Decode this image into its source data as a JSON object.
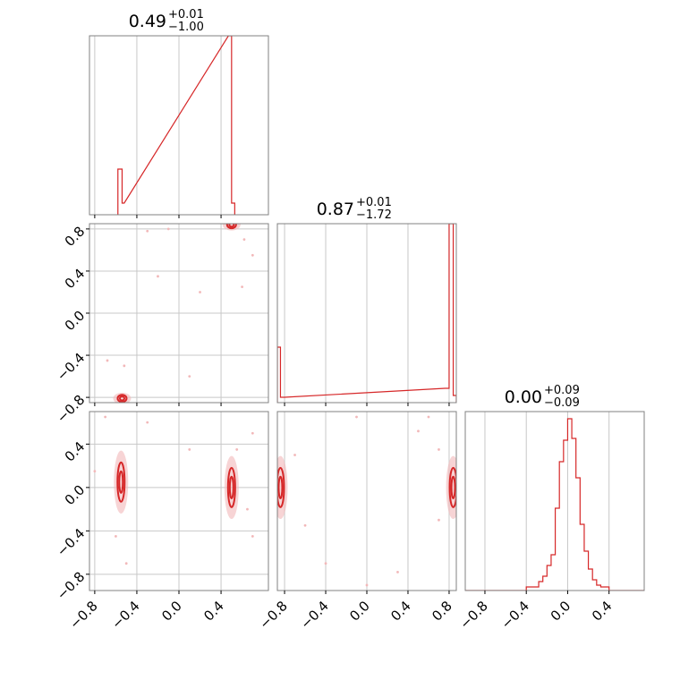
{
  "theme": {
    "line_color": "#d62728",
    "axis_color": "#808080",
    "grid_color": "#c8c8c8",
    "point_color": "#f2b8b9"
  },
  "chart_data": [
    {
      "panel": "hist-param-1",
      "type": "histogram",
      "title": {
        "value": "0.49",
        "plus": "+0.01",
        "minus": "−1.00"
      },
      "xlim": [
        -0.85,
        0.85
      ],
      "ylim": [
        0,
        1
      ],
      "xticks": [
        -0.8,
        -0.4,
        0.0,
        0.4
      ],
      "bins": [
        {
          "x0": -0.58,
          "x1": -0.54,
          "y": 0.255
        },
        {
          "x0": -0.54,
          "x1": -0.52,
          "y": 0.065
        },
        {
          "x0": 0.47,
          "x1": 0.5,
          "y": 1.0
        },
        {
          "x0": 0.5,
          "x1": 0.53,
          "y": 0.065
        }
      ]
    },
    {
      "panel": "scatter-p1-p2",
      "type": "scatter",
      "xlim": [
        -0.85,
        0.85
      ],
      "ylim": [
        -0.85,
        0.85
      ],
      "xticks": [
        -0.8,
        -0.4,
        0.0,
        0.4
      ],
      "yticks": [
        -0.8,
        -0.4,
        0.0,
        0.4,
        0.8
      ],
      "ytick_labels": [
        "−0.8",
        "−0.4",
        "0.0",
        "0.4",
        "0.8"
      ],
      "clusters": [
        {
          "x": 0.5,
          "y": 0.84
        },
        {
          "x": -0.54,
          "y": -0.81
        }
      ],
      "points": [
        [
          -0.68,
          -0.45
        ],
        [
          -0.52,
          -0.5
        ],
        [
          -0.3,
          0.78
        ],
        [
          0.2,
          0.2
        ],
        [
          -0.2,
          0.35
        ],
        [
          0.1,
          -0.6
        ],
        [
          0.62,
          0.7
        ],
        [
          0.7,
          0.55
        ],
        [
          0.6,
          0.25
        ],
        [
          -0.1,
          0.8
        ]
      ]
    },
    {
      "panel": "hist-param-2",
      "type": "histogram",
      "title": {
        "value": "0.87",
        "plus": "+0.01",
        "minus": "−1.72"
      },
      "xlim": [
        -0.87,
        0.87
      ],
      "ylim": [
        0,
        1
      ],
      "xticks": [
        -0.8,
        -0.4,
        0.0,
        0.4,
        0.8
      ],
      "bins": [
        {
          "x0": -0.87,
          "x1": -0.84,
          "y": 0.31
        },
        {
          "x0": -0.84,
          "x1": -0.8,
          "y": 0.03
        },
        {
          "x0": 0.76,
          "x1": 0.8,
          "y": 0.08
        },
        {
          "x0": 0.8,
          "x1": 0.84,
          "y": 1.0
        },
        {
          "x0": 0.84,
          "x1": 0.87,
          "y": 0.04
        }
      ]
    },
    {
      "panel": "scatter-p1-p3",
      "type": "scatter",
      "xlim": [
        -0.85,
        0.85
      ],
      "ylim": [
        -0.95,
        0.7
      ],
      "xticks": [
        -0.8,
        -0.4,
        0.0,
        0.4
      ],
      "xtick_labels": [
        "−0.8",
        "−0.4",
        "0.0",
        "0.4"
      ],
      "yticks": [
        -0.8,
        -0.4,
        0.0,
        0.4
      ],
      "ytick_labels": [
        "−0.8",
        "−0.4",
        "0.0",
        "0.4"
      ],
      "clusters": [
        {
          "x": -0.55,
          "y": 0.05
        },
        {
          "x": 0.5,
          "y": 0.0
        }
      ],
      "points": [
        [
          -0.7,
          0.65
        ],
        [
          -0.3,
          0.6
        ],
        [
          0.1,
          0.35
        ],
        [
          0.55,
          0.35
        ],
        [
          0.7,
          0.5
        ],
        [
          -0.6,
          -0.45
        ],
        [
          -0.5,
          -0.7
        ],
        [
          0.65,
          -0.2
        ],
        [
          0.7,
          -0.45
        ],
        [
          -0.8,
          0.15
        ]
      ]
    },
    {
      "panel": "scatter-p2-p3",
      "type": "scatter",
      "xlim": [
        -0.87,
        0.87
      ],
      "ylim": [
        -0.95,
        0.7
      ],
      "xticks": [
        -0.8,
        -0.4,
        0.0,
        0.4,
        0.8
      ],
      "xtick_labels": [
        "−0.8",
        "−0.4",
        "0.0",
        "0.4",
        "0.8"
      ],
      "clusters": [
        {
          "x": -0.84,
          "y": 0.0
        },
        {
          "x": 0.84,
          "y": 0.0
        }
      ],
      "points": [
        [
          -0.1,
          0.65
        ],
        [
          0.6,
          0.65
        ],
        [
          0.5,
          0.52
        ],
        [
          -0.4,
          -0.7
        ],
        [
          0.3,
          -0.78
        ],
        [
          0.0,
          -0.9
        ],
        [
          -0.7,
          0.3
        ],
        [
          0.7,
          0.35
        ],
        [
          0.7,
          -0.3
        ],
        [
          -0.6,
          -0.35
        ]
      ]
    },
    {
      "panel": "hist-param-3",
      "type": "histogram",
      "title": {
        "value": "0.00",
        "plus": "+0.09",
        "minus": "−0.09"
      },
      "xlim": [
        -0.99,
        0.74
      ],
      "ylim": [
        0,
        1
      ],
      "xticks": [
        -0.8,
        -0.4,
        0.0,
        0.4
      ],
      "xtick_labels": [
        "−0.8",
        "−0.4",
        "0.0",
        "0.4"
      ],
      "bins": [
        {
          "x0": -0.99,
          "x1": -0.4,
          "y": 0.0
        },
        {
          "x0": -0.4,
          "x1": -0.32,
          "y": 0.02
        },
        {
          "x0": -0.32,
          "x1": -0.28,
          "y": 0.02
        },
        {
          "x0": -0.28,
          "x1": -0.24,
          "y": 0.05
        },
        {
          "x0": -0.24,
          "x1": -0.2,
          "y": 0.08
        },
        {
          "x0": -0.2,
          "x1": -0.16,
          "y": 0.14
        },
        {
          "x0": -0.16,
          "x1": -0.12,
          "y": 0.2
        },
        {
          "x0": -0.12,
          "x1": -0.08,
          "y": 0.46
        },
        {
          "x0": -0.08,
          "x1": -0.04,
          "y": 0.72
        },
        {
          "x0": -0.04,
          "x1": 0.0,
          "y": 0.84
        },
        {
          "x0": 0.0,
          "x1": 0.04,
          "y": 0.96
        },
        {
          "x0": 0.04,
          "x1": 0.08,
          "y": 0.85
        },
        {
          "x0": 0.08,
          "x1": 0.12,
          "y": 0.63
        },
        {
          "x0": 0.12,
          "x1": 0.16,
          "y": 0.37
        },
        {
          "x0": 0.16,
          "x1": 0.2,
          "y": 0.22
        },
        {
          "x0": 0.2,
          "x1": 0.24,
          "y": 0.12
        },
        {
          "x0": 0.24,
          "x1": 0.28,
          "y": 0.06
        },
        {
          "x0": 0.28,
          "x1": 0.32,
          "y": 0.03
        },
        {
          "x0": 0.32,
          "x1": 0.4,
          "y": 0.02
        },
        {
          "x0": 0.4,
          "x1": 0.74,
          "y": 0.0
        }
      ]
    }
  ]
}
